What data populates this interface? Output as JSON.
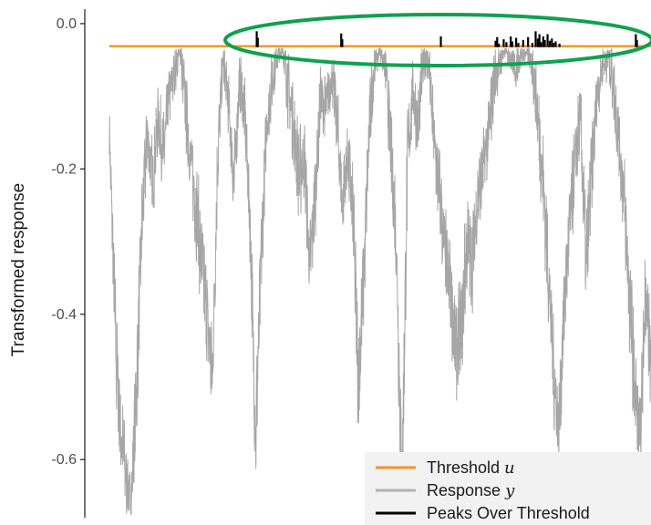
{
  "chart_data": {
    "type": "line",
    "title": "",
    "xlabel": "",
    "ylabel": "Transformed response",
    "xlim": [
      0,
      100
    ],
    "ylim": [
      -0.68,
      0.02
    ],
    "yticks": [
      {
        "value": 0.0,
        "label": "0.0"
      },
      {
        "value": -0.2,
        "label": "-0.2"
      },
      {
        "value": -0.4,
        "label": "-0.4"
      },
      {
        "value": -0.6,
        "label": "-0.6"
      }
    ],
    "grid": false,
    "legend_position": "bottom-right",
    "threshold": -0.031,
    "highlight": {
      "shape": "ellipse",
      "color": "#0fa14f",
      "around": "peaks"
    },
    "series": [
      {
        "name": "Response y",
        "color": "#a6a6a6",
        "x": [
          0,
          1.2,
          2,
          3,
          4,
          5,
          6,
          7,
          8,
          9,
          10,
          11,
          12,
          13,
          14,
          15,
          16,
          17,
          18,
          19,
          20,
          21,
          22,
          23,
          24,
          25,
          26,
          27,
          28,
          29,
          30,
          31,
          32,
          33,
          34,
          35,
          36,
          37,
          38,
          39,
          40,
          41,
          42,
          43,
          44,
          45,
          46,
          47,
          48,
          49,
          50,
          51,
          52,
          53,
          54,
          55,
          56,
          57,
          58,
          59,
          60,
          61,
          62,
          63,
          64,
          65,
          66,
          67,
          68,
          69,
          70,
          71,
          72,
          73,
          74,
          75,
          76,
          77,
          78,
          79,
          80,
          81,
          82,
          83,
          84,
          85,
          86,
          87,
          88,
          89,
          90,
          91,
          92,
          93,
          94,
          95,
          96,
          97,
          98,
          99,
          100
        ],
        "y": [
          -0.15,
          -0.45,
          -0.55,
          -0.62,
          -0.66,
          -0.5,
          -0.28,
          -0.15,
          -0.22,
          -0.13,
          -0.18,
          -0.1,
          -0.07,
          -0.03,
          -0.11,
          -0.19,
          -0.25,
          -0.33,
          -0.4,
          -0.49,
          -0.18,
          -0.05,
          -0.11,
          -0.22,
          -0.08,
          -0.12,
          -0.28,
          -0.57,
          -0.33,
          -0.14,
          -0.08,
          -0.04,
          -0.03,
          -0.09,
          -0.14,
          -0.21,
          -0.18,
          -0.34,
          -0.23,
          -0.1,
          -0.12,
          -0.07,
          -0.13,
          -0.25,
          -0.18,
          -0.27,
          -0.49,
          -0.34,
          -0.14,
          -0.05,
          -0.03,
          -0.06,
          -0.18,
          -0.3,
          -0.65,
          -0.2,
          -0.09,
          -0.14,
          -0.04,
          -0.06,
          -0.17,
          -0.24,
          -0.32,
          -0.37,
          -0.45,
          -0.42,
          -0.3,
          -0.33,
          -0.24,
          -0.2,
          -0.15,
          -0.08,
          -0.05,
          -0.03,
          -0.04,
          -0.06,
          -0.04,
          -0.03,
          -0.05,
          -0.12,
          -0.21,
          -0.33,
          -0.48,
          -0.56,
          -0.38,
          -0.28,
          -0.19,
          -0.13,
          -0.34,
          -0.21,
          -0.1,
          -0.06,
          -0.04,
          -0.08,
          -0.15,
          -0.24,
          -0.37,
          -0.5,
          -0.58,
          -0.36,
          -0.48
        ],
        "amp": [
          0.03,
          0.08,
          0.06,
          0.05,
          0.03,
          0.07,
          0.06,
          0.04,
          0.05,
          0.04,
          0.05,
          0.04,
          0.03,
          0.02,
          0.05,
          0.05,
          0.06,
          0.07,
          0.06,
          0.06,
          0.06,
          0.03,
          0.04,
          0.05,
          0.04,
          0.04,
          0.06,
          0.07,
          0.06,
          0.04,
          0.04,
          0.02,
          0.02,
          0.05,
          0.05,
          0.06,
          0.05,
          0.06,
          0.06,
          0.04,
          0.04,
          0.03,
          0.05,
          0.05,
          0.05,
          0.06,
          0.08,
          0.06,
          0.05,
          0.03,
          0.02,
          0.03,
          0.06,
          0.07,
          0.09,
          0.07,
          0.04,
          0.05,
          0.03,
          0.03,
          0.05,
          0.06,
          0.06,
          0.06,
          0.06,
          0.07,
          0.06,
          0.06,
          0.05,
          0.05,
          0.05,
          0.04,
          0.03,
          0.02,
          0.02,
          0.03,
          0.02,
          0.02,
          0.03,
          0.05,
          0.06,
          0.07,
          0.06,
          0.06,
          0.06,
          0.06,
          0.05,
          0.05,
          0.07,
          0.06,
          0.04,
          0.03,
          0.03,
          0.04,
          0.05,
          0.06,
          0.07,
          0.07,
          0.05,
          0.06,
          0.06
        ]
      },
      {
        "name": "Threshold u",
        "color": "#f7931e",
        "x": [
          0,
          100
        ],
        "y": [
          -0.031,
          -0.031
        ]
      },
      {
        "name": "Peaks Over Threshold",
        "color": "#000000",
        "x": [
          27.2,
          27.4,
          42.8,
          43.0,
          61.2,
          71.3,
          71.6,
          71.9,
          72.8,
          73.3,
          74.1,
          74.4,
          75.1,
          75.5,
          76.4,
          77.3,
          78.1,
          78.7,
          79.1,
          79.4,
          79.7,
          80.1,
          80.4,
          80.9,
          81.3,
          81.7,
          82.0,
          82.4,
          83.1,
          97.2,
          97.4
        ],
        "y": [
          -0.0105,
          -0.0195,
          -0.0135,
          -0.0215,
          -0.0175,
          -0.0235,
          -0.0185,
          -0.0275,
          -0.0215,
          -0.0255,
          -0.0175,
          -0.0245,
          -0.0195,
          -0.0265,
          -0.0225,
          -0.0185,
          -0.0265,
          -0.0105,
          -0.0205,
          -0.0145,
          -0.0255,
          -0.0175,
          -0.0225,
          -0.0145,
          -0.0235,
          -0.0205,
          -0.0265,
          -0.0245,
          -0.0275,
          -0.0145,
          -0.0225
        ]
      }
    ],
    "legend": [
      {
        "text": "Threshold ",
        "var": "u",
        "color": "#f7931e"
      },
      {
        "text": "Response ",
        "var": "y",
        "color": "#b3b3b3"
      },
      {
        "text": "Peaks Over Threshold",
        "var": "",
        "color": "#000000"
      }
    ]
  }
}
